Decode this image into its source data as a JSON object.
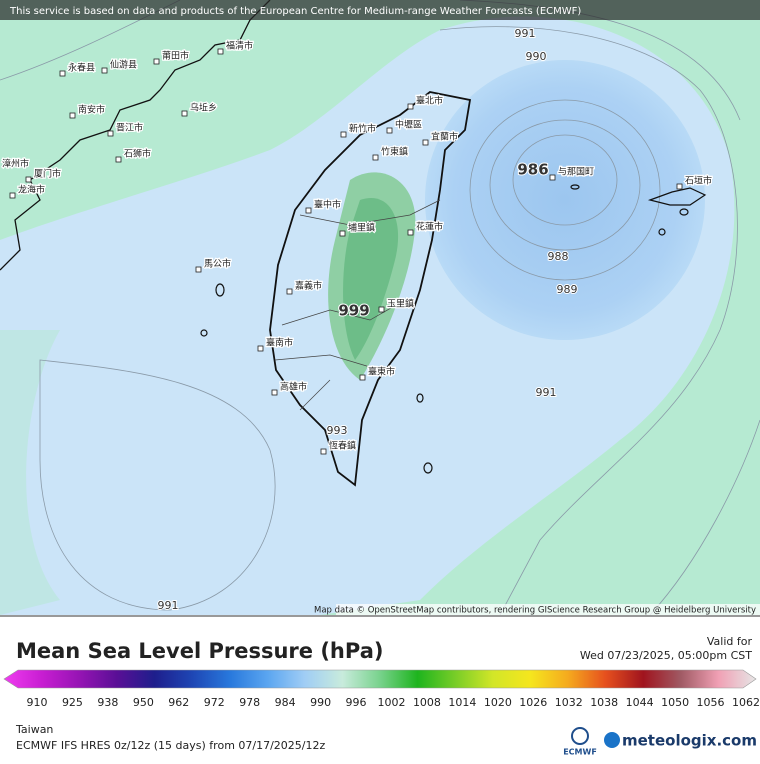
{
  "banner": "This service is based on data and products of the European Centre for Medium-range Weather Forecasts (ECMWF)",
  "attribution": "Map data © OpenStreetMap contributors, rendering GIScience Research Group @ Heidelberg University",
  "map": {
    "contour_labels": [
      991,
      990,
      986,
      988,
      989,
      991,
      999,
      993,
      991
    ],
    "places": [
      "永春县",
      "仙游县",
      "莆田市",
      "福清市",
      "南安市",
      "晋江市",
      "石狮市",
      "乌坵乡",
      "漳州市",
      "厦门市",
      "龙海市",
      "臺北市",
      "新竹市",
      "中壢區",
      "竹東鎮",
      "宜蘭市",
      "臺中市",
      "埔里鎮",
      "花蓮市",
      "馬公市",
      "嘉義市",
      "玉里鎮",
      "臺南市",
      "臺東市",
      "高雄市",
      "恆春鎮",
      "与那国町",
      "石垣市"
    ]
  },
  "legend": {
    "title": "Mean Sea Level Pressure (hPa)",
    "valid_label": "Valid for",
    "valid_time": "Wed 07/23/2025, 05:00pm CST",
    "colorbar": {
      "ticks": [
        910,
        925,
        938,
        950,
        962,
        972,
        978,
        984,
        990,
        996,
        1002,
        1008,
        1014,
        1020,
        1026,
        1032,
        1038,
        1044,
        1050,
        1056,
        1062
      ],
      "colors": [
        "#f03cf0",
        "#c81ed2",
        "#9614b4",
        "#5a0f96",
        "#1e1e8c",
        "#1e46b4",
        "#2878dc",
        "#5aa5f0",
        "#a0cdf5",
        "#c8ebdc",
        "#78d28c",
        "#1eb41e",
        "#78cd28",
        "#d2e628",
        "#f5e61e",
        "#f5aa1e",
        "#e6501e",
        "#a0141e",
        "#a05a64",
        "#f0a0b4",
        "#e6e6e6"
      ]
    }
  },
  "footer": {
    "region": "Taiwan",
    "model": "ECMWF IFS HRES 0z/12z (15 days) from  07/17/2025/12z",
    "ecmwf": "ECMWF",
    "brand": "meteologix.com"
  }
}
